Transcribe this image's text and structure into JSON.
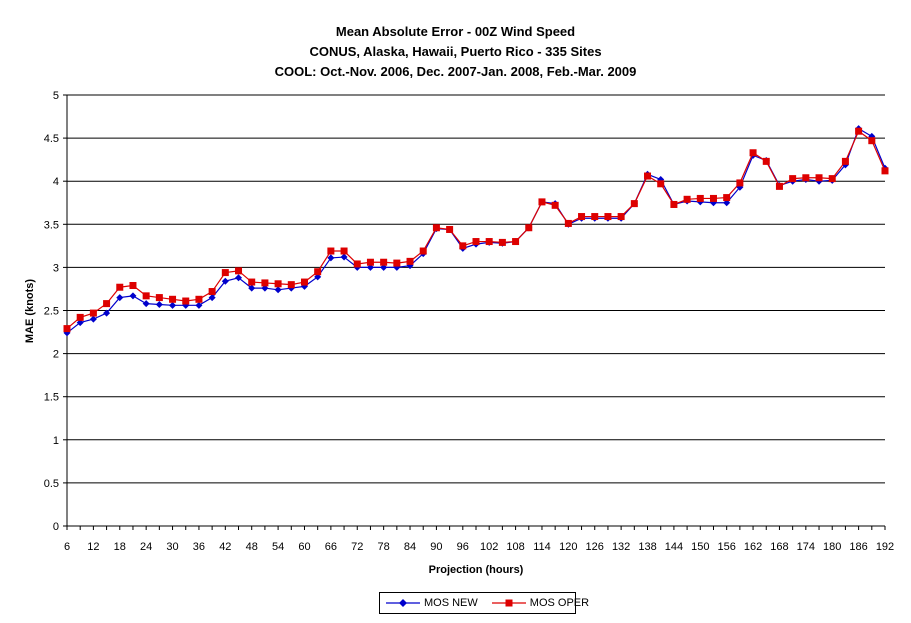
{
  "chart_data": {
    "type": "line",
    "title": "Mean Absolute Error - 00Z Wind Speed",
    "subtitle_lines": [
      "CONUS, Alaska, Hawaii, Puerto Rico - 335 Sites",
      "COOL: Oct.-Nov. 2006, Dec. 2007-Jan. 2008, Feb.-Mar. 2009"
    ],
    "xlabel": "Projection (hours)",
    "ylabel": "MAE (knots)",
    "ylim": [
      0,
      5
    ],
    "yticks": [
      "0",
      "0.5",
      "1",
      "1.5",
      "2",
      "2.5",
      "3",
      "3.5",
      "4",
      "4.5",
      "5"
    ],
    "xticks": [
      "6",
      "12",
      "18",
      "24",
      "30",
      "36",
      "42",
      "48",
      "54",
      "60",
      "66",
      "72",
      "78",
      "84",
      "90",
      "96",
      "102",
      "108",
      "114",
      "120",
      "126",
      "132",
      "138",
      "144",
      "150",
      "156",
      "162",
      "168",
      "174",
      "180",
      "186",
      "192"
    ],
    "grid": "horizontal",
    "legend_position": "bottom",
    "x": [
      6,
      9,
      12,
      15,
      18,
      21,
      24,
      27,
      30,
      33,
      36,
      39,
      42,
      45,
      48,
      51,
      54,
      57,
      60,
      63,
      66,
      69,
      72,
      75,
      78,
      81,
      84,
      87,
      90,
      93,
      96,
      99,
      102,
      105,
      108,
      111,
      114,
      117,
      120,
      123,
      126,
      129,
      132,
      135,
      138,
      141,
      144,
      147,
      150,
      153,
      156,
      159,
      162,
      165,
      168,
      171,
      174,
      177,
      180,
      183,
      186,
      189,
      192
    ],
    "series": [
      {
        "name": "MOS NEW",
        "color": "#0000cc",
        "marker": "diamond",
        "values": [
          2.24,
          2.36,
          2.4,
          2.47,
          2.65,
          2.67,
          2.58,
          2.57,
          2.56,
          2.56,
          2.56,
          2.65,
          2.84,
          2.88,
          2.76,
          2.76,
          2.74,
          2.76,
          2.78,
          2.89,
          3.11,
          3.12,
          3.0,
          3.0,
          3.0,
          3.0,
          3.02,
          3.16,
          3.45,
          3.44,
          3.22,
          3.27,
          3.29,
          3.28,
          3.3,
          3.46,
          3.76,
          3.74,
          3.5,
          3.57,
          3.57,
          3.57,
          3.57,
          3.74,
          4.08,
          4.02,
          3.73,
          3.77,
          3.76,
          3.75,
          3.75,
          3.93,
          4.3,
          4.24,
          3.95,
          4.0,
          4.02,
          4.0,
          4.01,
          4.19,
          4.61,
          4.52,
          4.15
        ]
      },
      {
        "name": "MOS OPER",
        "color": "#dd0000",
        "marker": "square",
        "values": [
          2.29,
          2.42,
          2.47,
          2.58,
          2.77,
          2.79,
          2.67,
          2.65,
          2.63,
          2.61,
          2.63,
          2.72,
          2.94,
          2.96,
          2.83,
          2.82,
          2.81,
          2.8,
          2.83,
          2.95,
          3.19,
          3.19,
          3.04,
          3.06,
          3.06,
          3.05,
          3.07,
          3.19,
          3.46,
          3.44,
          3.25,
          3.3,
          3.3,
          3.29,
          3.3,
          3.46,
          3.76,
          3.72,
          3.51,
          3.59,
          3.59,
          3.59,
          3.59,
          3.74,
          4.06,
          3.97,
          3.73,
          3.79,
          3.8,
          3.8,
          3.81,
          3.98,
          4.33,
          4.23,
          3.94,
          4.03,
          4.04,
          4.04,
          4.03,
          4.23,
          4.58,
          4.47,
          4.12
        ]
      }
    ]
  }
}
